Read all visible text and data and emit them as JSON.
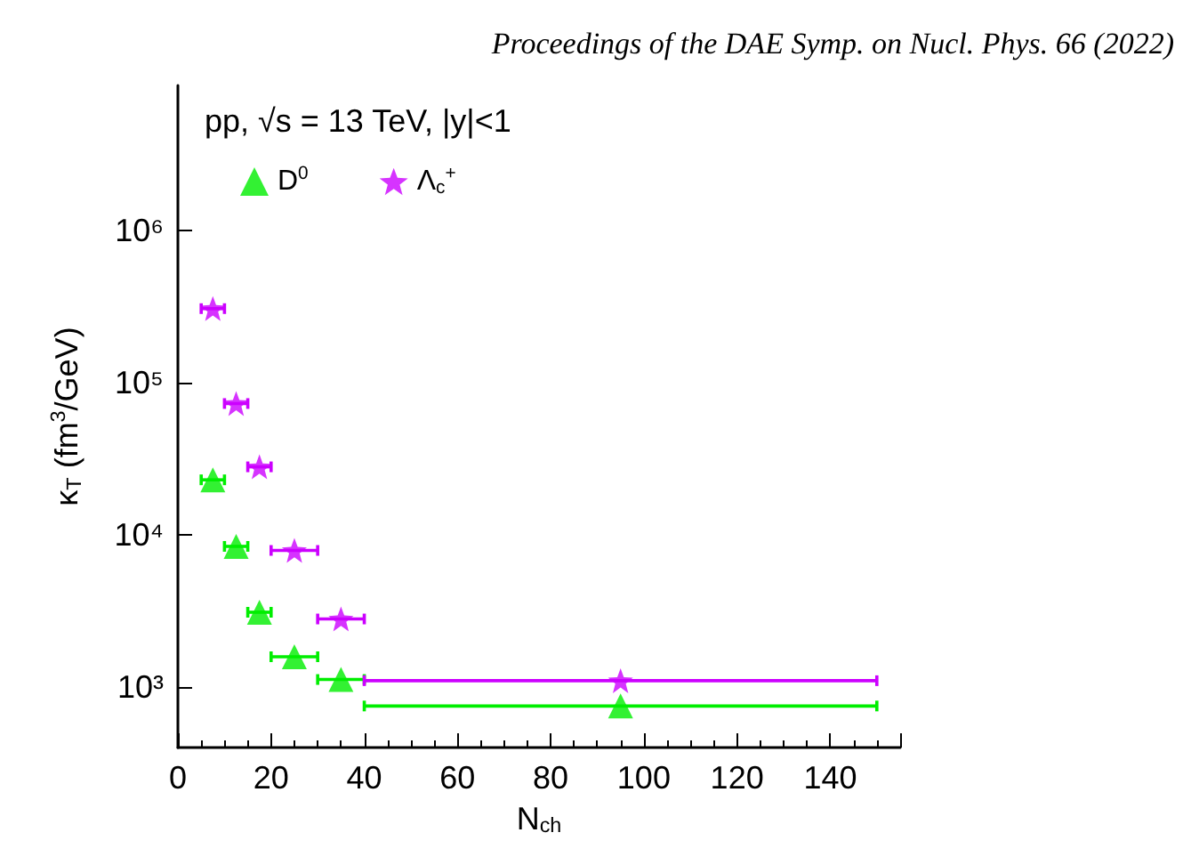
{
  "chart_data": {
    "type": "scatter",
    "title": "pp, √s = 13 TeV, |y|<1",
    "annotations": [
      "Proceedings of the DAE Symp. on Nucl. Phys. 66 (2022)"
    ],
    "xlabel": "N$_{ch}$",
    "ylabel": "κ$_{T}$ (fm$^{3}$/GeV)",
    "x": [
      7.5,
      12.5,
      17.5,
      25,
      35,
      95
    ],
    "series": [
      {
        "name": "D$^{0}$",
        "color": "#00ee00",
        "marker": "triangle",
        "values": [
          23000,
          8400,
          3100,
          1580,
          1120,
          750
        ],
        "xerrors": [
          [
            5,
            10
          ],
          [
            10,
            15
          ],
          [
            15,
            20
          ],
          [
            20,
            30
          ],
          [
            30,
            40
          ],
          [
            40,
            150
          ]
        ]
      },
      {
        "name": "Λ$_{c}$$^{+}$",
        "color": "#cc00ff",
        "marker": "star",
        "values": [
          307000,
          73000,
          28000,
          7900,
          2800,
          1100
        ],
        "xerrors": [
          [
            5,
            10
          ],
          [
            10,
            15
          ],
          [
            15,
            20
          ],
          [
            20,
            30
          ],
          [
            30,
            40
          ],
          [
            40,
            150
          ]
        ]
      }
    ],
    "log": "y",
    "xlim": [
      0,
      155
    ],
    "ylim": [
      400,
      9000000
    ],
    "xticks": [
      0,
      20,
      40,
      60,
      80,
      100,
      120,
      140
    ],
    "yticks": [
      {
        "value": 1000,
        "label": "10³"
      },
      {
        "value": 10000,
        "label": "10⁴"
      },
      {
        "value": 100000,
        "label": "10⁵"
      },
      {
        "value": 1000000,
        "label": "10⁶"
      }
    ],
    "legend": "top left"
  }
}
